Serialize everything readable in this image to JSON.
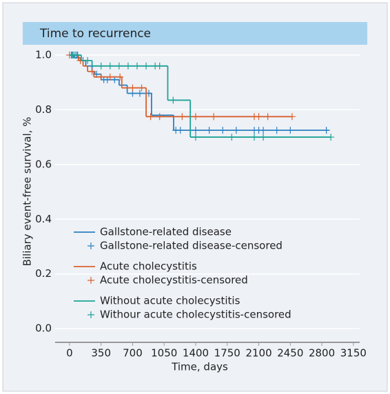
{
  "chart_data": {
    "type": "step",
    "title": "Time to recurrence",
    "x_label": "Time, days",
    "y_label": "Biliary event-free survival, %",
    "xlim": [
      -160,
      3220
    ],
    "ylim": [
      -0.05,
      1.03
    ],
    "xticks": [
      0,
      350,
      700,
      1050,
      1400,
      1750,
      2100,
      2450,
      2800,
      3150
    ],
    "yticks": [
      {
        "value": 0,
        "label": "0.0"
      },
      {
        "value": 0.2,
        "label": "0.2"
      },
      {
        "value": 0.4,
        "label": "0.4"
      },
      {
        "value": 0.6,
        "label": "0.6"
      },
      {
        "value": 0.8,
        "label": "0.8"
      },
      {
        "value": 1,
        "label": "1.0"
      }
    ],
    "grid": true,
    "legend": "lower left",
    "series": [
      {
        "name": "Gallstone-related disease",
        "color": "#2a80c2",
        "marker": "step",
        "x": [
          0,
          50,
          120,
          180,
          250,
          280,
          350,
          550,
          640,
          910,
          1155,
          2880
        ],
        "values": [
          1,
          0.99,
          0.98,
          0.96,
          0.94,
          0.93,
          0.91,
          0.89,
          0.86,
          0.78,
          0.725,
          0.725
        ]
      },
      {
        "name": "Gallstone-related disease-censored",
        "color": "#2a80c2",
        "marker": "+",
        "x": [
          20,
          40,
          60,
          80,
          150,
          300,
          380,
          420,
          500,
          700,
          780,
          880,
          1180,
          1230,
          1400,
          1550,
          1700,
          1850,
          2050,
          2100,
          2150,
          2300,
          2450,
          2850
        ],
        "values": [
          1,
          1,
          1,
          1,
          0.98,
          0.93,
          0.91,
          0.91,
          0.91,
          0.86,
          0.86,
          0.86,
          0.725,
          0.725,
          0.725,
          0.725,
          0.725,
          0.725,
          0.725,
          0.725,
          0.725,
          0.725,
          0.725,
          0.725
        ]
      },
      {
        "name": "Acute cholecystitis",
        "color": "#d9612e",
        "marker": "step",
        "x": [
          0,
          100,
          150,
          200,
          270,
          580,
          850,
          2470
        ],
        "values": [
          1,
          0.98,
          0.96,
          0.94,
          0.92,
          0.88,
          0.775,
          0.775
        ]
      },
      {
        "name": "Acute cholecystitis-censored",
        "color": "#d9612e",
        "marker": "+",
        "x": [
          0,
          120,
          250,
          350,
          450,
          560,
          700,
          800,
          900,
          1000,
          1250,
          1400,
          1600,
          2050,
          2100,
          2200,
          2470
        ],
        "values": [
          1,
          0.98,
          0.94,
          0.92,
          0.92,
          0.92,
          0.88,
          0.88,
          0.775,
          0.775,
          0.775,
          0.775,
          0.775,
          0.775,
          0.775,
          0.775,
          0.775
        ]
      },
      {
        "name": "Without acute cholecystitis",
        "color": "#1ba396",
        "marker": "step",
        "x": [
          0,
          130,
          250,
          1090,
          1340,
          2900
        ],
        "values": [
          1,
          0.98,
          0.96,
          0.835,
          0.7,
          0.7
        ]
      },
      {
        "name": "Withour acute cholecystitis-censored",
        "color": "#1ba396",
        "marker": "+",
        "x": [
          30,
          60,
          90,
          200,
          350,
          450,
          550,
          650,
          750,
          850,
          950,
          1000,
          1150,
          1400,
          1800,
          2050,
          2150,
          2900
        ],
        "values": [
          1,
          1,
          1,
          0.98,
          0.96,
          0.96,
          0.96,
          0.96,
          0.96,
          0.96,
          0.96,
          0.96,
          0.835,
          0.7,
          0.7,
          0.7,
          0.7,
          0.7
        ]
      }
    ]
  }
}
